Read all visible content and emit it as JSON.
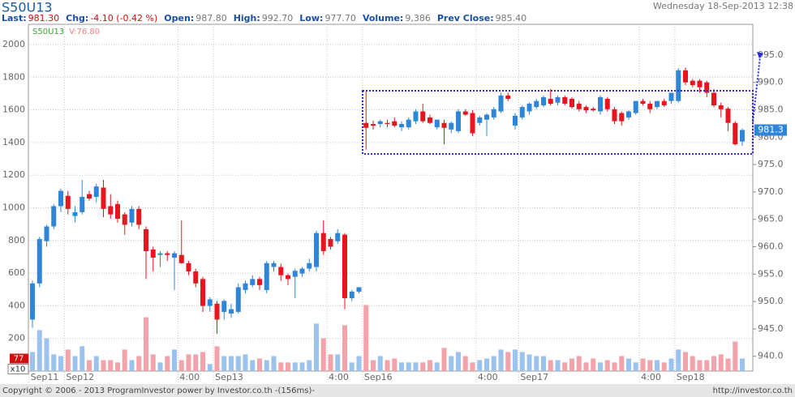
{
  "chart_data": {
    "type": "candlestick",
    "title": "S50U13",
    "date": "Wednesday 18-Sep-2013 12:38",
    "quote": [
      {
        "label": "Last:",
        "value": "981.30",
        "color": "#d01010"
      },
      {
        "label": "Chg:",
        "value": "-4.10 (-0.42 %)",
        "color": "#d01010"
      },
      {
        "label": "Open:",
        "value": "987.80",
        "color": "#777777"
      },
      {
        "label": "High:",
        "value": "992.70",
        "color": "#777777"
      },
      {
        "label": "Low:",
        "value": "977.70",
        "color": "#777777"
      },
      {
        "label": "Volume:",
        "value": "9,386",
        "color": "#777777"
      },
      {
        "label": "Prev Close:",
        "value": "985.40",
        "color": "#777777"
      }
    ],
    "legend": [
      {
        "name": "S50U13",
        "color": "#3aa33a"
      },
      {
        "name": "V:76.80",
        "color": "#f08080"
      }
    ],
    "volume_marker": "77",
    "volume_unit": "x10",
    "copyright": "Copyright © 2006 - 2013 ProgramInvestor power by Investor.co.th  -(156ms)-",
    "url": "http://investor.co.th",
    "up_color": "#2f86d8",
    "down_color": "#e8141e",
    "volume_up_color": "#9cc3ee",
    "volume_down_color": "#f4a3ab",
    "grid": true,
    "categories": [
      "Sep11",
      null,
      null,
      null,
      null,
      "Sep12",
      null,
      null,
      null,
      null,
      null,
      null,
      null,
      null,
      null,
      null,
      null,
      null,
      null,
      null,
      null,
      "4:00",
      null,
      null,
      null,
      null,
      "Sep13",
      null,
      null,
      null,
      null,
      null,
      null,
      null,
      null,
      null,
      null,
      null,
      null,
      null,
      null,
      null,
      "4:00",
      null,
      null,
      null,
      null,
      "Sep16",
      null,
      null,
      null,
      null,
      null,
      null,
      null,
      null,
      null,
      null,
      null,
      null,
      null,
      null,
      null,
      "4:00",
      null,
      null,
      null,
      null,
      null,
      "Sep17",
      null,
      null,
      null,
      null,
      null,
      null,
      null,
      null,
      null,
      null,
      null,
      null,
      null,
      null,
      null,
      null,
      "4:00",
      null,
      null,
      null,
      null,
      "Sep18",
      null,
      null,
      null,
      null,
      null,
      null,
      null,
      null,
      null
    ],
    "open": [
      946.7,
      953.3,
      961.0,
      963.7,
      967.4,
      969.3,
      965.6,
      966.3,
      969.6,
      969.1,
      970.8,
      967.4,
      967.8,
      965.9,
      964.4,
      966.9,
      963.2,
      959.5,
      958.5,
      958.8,
      958.0,
      958.5,
      957.0,
      955.5,
      954.1,
      949.2,
      949.6,
      948.1,
      947.8,
      948.1,
      952.1,
      953.0,
      954.1,
      952.1,
      956.3,
      956.3,
      954.8,
      954.5,
      955.1,
      956.0,
      956.3,
      962.5,
      961.4,
      961.0,
      962.2,
      950.6,
      951.8,
      982.6,
      982.4,
      982.4,
      982.6,
      982.9,
      981.8,
      981.8,
      982.9,
      984.7,
      983.6,
      981.8,
      982.6,
      981.4,
      981.1,
      984.7,
      984.4,
      982.6,
      983.2,
      983.6,
      984.7,
      987.6,
      982.1,
      983.6,
      984.7,
      985.5,
      985.8,
      987.0,
      986.3,
      987.3,
      987.0,
      986.1,
      985.5,
      985.2,
      984.7,
      987.0,
      985.1,
      984.4,
      983.6,
      984.4,
      986.6,
      986.1,
      985.5,
      986.6,
      986.6,
      986.6,
      992.2,
      990.3,
      990.3,
      990.0,
      988.1,
      985.8,
      985.2,
      982.6,
      979.2
    ],
    "high": [
      953.8,
      961.8,
      964.0,
      967.8,
      970.6,
      970.2,
      967.4,
      972.2,
      970.2,
      971.5,
      972.2,
      969.6,
      968.4,
      966.3,
      967.4,
      967.4,
      963.7,
      960.0,
      959.2,
      959.2,
      959.2,
      964.8,
      957.4,
      956.0,
      954.5,
      950.8,
      950.1,
      950.4,
      949.6,
      953.3,
      953.8,
      954.8,
      954.5,
      957.4,
      957.4,
      956.9,
      955.1,
      956.0,
      956.3,
      957.8,
      962.9,
      964.8,
      961.8,
      963.2,
      962.5,
      952.1,
      952.6,
      988.5,
      983.0,
      983.2,
      983.2,
      983.6,
      982.9,
      983.6,
      985.1,
      986.1,
      984.1,
      983.2,
      983.2,
      982.9,
      985.1,
      985.1,
      984.9,
      983.9,
      984.4,
      985.5,
      988.1,
      988.1,
      984.4,
      985.8,
      986.3,
      987.0,
      987.6,
      988.8,
      987.6,
      987.6,
      987.3,
      986.6,
      985.8,
      985.5,
      987.6,
      987.3,
      985.5,
      984.7,
      984.9,
      986.6,
      987.0,
      986.6,
      986.6,
      987.0,
      988.1,
      992.6,
      992.7,
      990.6,
      990.6,
      990.3,
      988.8,
      986.3,
      985.5,
      982.9,
      981.6
    ],
    "low": [
      945.2,
      952.6,
      960.0,
      963.2,
      966.3,
      965.9,
      964.4,
      965.9,
      968.4,
      968.1,
      965.4,
      965.1,
      964.4,
      962.2,
      963.7,
      963.2,
      954.1,
      955.5,
      956.3,
      957.4,
      952.1,
      956.9,
      954.8,
      952.6,
      948.1,
      948.1,
      944.1,
      946.7,
      947.0,
      947.8,
      951.5,
      952.6,
      952.1,
      951.5,
      955.5,
      953.8,
      953.0,
      950.6,
      954.5,
      955.5,
      955.5,
      958.5,
      959.5,
      960.5,
      948.6,
      950.1,
      951.5,
      977.7,
      981.4,
      981.8,
      981.8,
      981.8,
      981.1,
      981.4,
      982.4,
      982.6,
      982.4,
      981.4,
      978.7,
      980.7,
      980.7,
      983.9,
      980.2,
      982.1,
      980.2,
      983.2,
      984.4,
      986.6,
      981.4,
      983.2,
      984.1,
      985.1,
      985.5,
      985.8,
      985.8,
      985.8,
      985.2,
      984.7,
      984.4,
      984.7,
      984.1,
      984.7,
      982.4,
      982.1,
      983.2,
      984.1,
      985.8,
      984.4,
      985.1,
      985.5,
      986.1,
      986.3,
      989.5,
      989.1,
      988.1,
      987.3,
      985.5,
      983.6,
      981.1,
      978.5,
      978.4
    ],
    "close": [
      953.3,
      961.4,
      963.7,
      967.4,
      970.2,
      966.9,
      966.3,
      969.1,
      968.8,
      971.0,
      966.9,
      965.9,
      965.1,
      964.0,
      966.9,
      964.0,
      959.2,
      958.0,
      958.8,
      958.5,
      958.8,
      957.0,
      955.5,
      953.3,
      949.2,
      950.4,
      946.7,
      950.1,
      948.6,
      952.6,
      953.3,
      954.1,
      953.0,
      957.0,
      957.0,
      954.8,
      954.1,
      955.6,
      956.0,
      957.0,
      962.5,
      959.2,
      960.0,
      962.5,
      950.6,
      951.8,
      952.6,
      981.7,
      982.1,
      982.9,
      982.4,
      982.1,
      982.4,
      983.2,
      984.7,
      982.9,
      982.6,
      983.2,
      981.7,
      982.6,
      984.7,
      984.1,
      980.7,
      983.6,
      984.1,
      985.1,
      987.6,
      987.0,
      983.9,
      985.5,
      986.1,
      986.6,
      987.3,
      986.1,
      987.3,
      986.1,
      985.5,
      985.1,
      984.9,
      984.9,
      987.3,
      985.1,
      982.9,
      982.9,
      984.7,
      986.6,
      986.1,
      985.1,
      986.6,
      985.8,
      988.1,
      992.2,
      990.0,
      989.5,
      989.1,
      988.1,
      985.8,
      985.1,
      982.6,
      978.7,
      981.3
    ],
    "volume": [
      117,
      251,
      201,
      102,
      92,
      132,
      92,
      152,
      67,
      92,
      67,
      67,
      53,
      132,
      67,
      92,
      330,
      102,
      53,
      92,
      132,
      67,
      102,
      102,
      117,
      43,
      152,
      92,
      92,
      92,
      102,
      67,
      77,
      67,
      92,
      53,
      53,
      53,
      53,
      67,
      291,
      201,
      102,
      102,
      281,
      53,
      92,
      405,
      67,
      92,
      67,
      77,
      53,
      53,
      53,
      53,
      67,
      53,
      142,
      92,
      117,
      92,
      53,
      67,
      77,
      92,
      132,
      117,
      132,
      117,
      102,
      92,
      92,
      67,
      67,
      53,
      77,
      92,
      53,
      77,
      53,
      67,
      53,
      92,
      77,
      53,
      77,
      67,
      67,
      53,
      77,
      132,
      117,
      92,
      67,
      67,
      92,
      102,
      77,
      181,
      76.8
    ],
    "ylim": [
      0,
      2124
    ],
    "yticks": [
      200,
      400,
      600,
      800,
      1000,
      1200,
      1400,
      1600,
      1800,
      2000
    ],
    "y2lim": [
      937.3,
      1000.6
    ],
    "y2ticks": [
      {
        "value": 940,
        "label": "940.0"
      },
      {
        "value": 945,
        "label": "945.0"
      },
      {
        "value": 950,
        "label": "950.0"
      },
      {
        "value": 955,
        "label": "955.0"
      },
      {
        "value": 960,
        "label": "960.0"
      },
      {
        "value": 965,
        "label": "965.0"
      },
      {
        "value": 970,
        "label": "970.0"
      },
      {
        "value": 975,
        "label": "975.0"
      },
      {
        "value": 980,
        "label": "980.0"
      },
      {
        "value": 985,
        "label": "985.0"
      },
      {
        "value": 990,
        "label": "990.0"
      },
      {
        "value": 995,
        "label": "995.0"
      }
    ]
  }
}
